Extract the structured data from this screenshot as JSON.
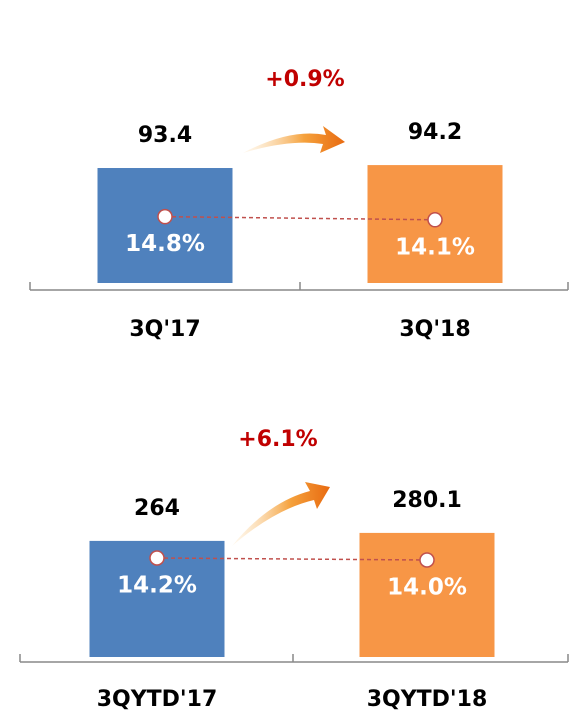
{
  "chart_data": [
    {
      "type": "bar",
      "annotation": "+0.9%",
      "categories": [
        "3Q'17",
        "3Q'18"
      ],
      "ylim": [
        62,
        97.5
      ],
      "y2lim": [
        0,
        29
      ],
      "series": [
        {
          "type": "bar",
          "colors": [
            "#4f81bd",
            "#f79646"
          ],
          "values": [
            93.4,
            94.2
          ]
        },
        {
          "type": "line",
          "axis": "y2",
          "color": "#c0504d",
          "values": [
            14.8,
            14.1
          ],
          "value_labels": [
            "14.8%",
            "14.1%"
          ]
        }
      ]
    },
    {
      "type": "bar",
      "annotation": "+6.1%",
      "categories": [
        "3QYTD'17",
        "3QYTD'18"
      ],
      "ylim": [
        30,
        292
      ],
      "y2lim": [
        4.3,
        17.3
      ],
      "series": [
        {
          "type": "bar",
          "colors": [
            "#4f81bd",
            "#f79646"
          ],
          "values": [
            264.0,
            280.1
          ]
        },
        {
          "type": "line",
          "axis": "y2",
          "color": "#c0504d",
          "values": [
            14.2,
            14.0
          ],
          "value_labels": [
            "14.2%",
            "14.0%"
          ]
        }
      ]
    }
  ]
}
